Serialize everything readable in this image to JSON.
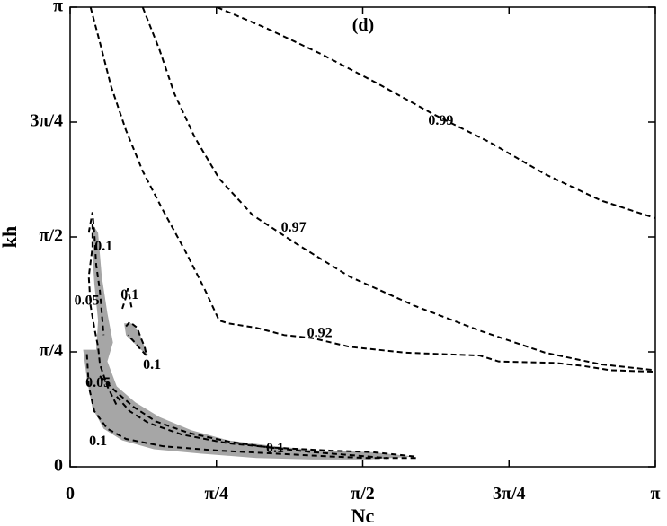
{
  "chart_data": {
    "type": "contour",
    "panel_label": "(d)",
    "xlabel": "Nc",
    "ylabel": "kh",
    "xlim": [
      0,
      3.14159
    ],
    "ylim": [
      0,
      3.14159
    ],
    "x_ticks": [
      {
        "value": 0,
        "label": "0"
      },
      {
        "value": 0.7854,
        "label": "π/4"
      },
      {
        "value": 1.5708,
        "label": "π/2"
      },
      {
        "value": 2.3562,
        "label": "3π/4"
      },
      {
        "value": 3.14159,
        "label": "π"
      }
    ],
    "y_ticks": [
      {
        "value": 0,
        "label": "0"
      },
      {
        "value": 0.7854,
        "label": "π/4"
      },
      {
        "value": 1.5708,
        "label": "π/2"
      },
      {
        "value": 2.3562,
        "label": "3π/4"
      },
      {
        "value": 3.14159,
        "label": "π"
      }
    ],
    "contours": [
      {
        "level": "0.99",
        "label_at": [
          1.99,
          2.36
        ],
        "points": [
          [
            0.79,
            3.14
          ],
          [
            1.05,
            3.0
          ],
          [
            1.35,
            2.82
          ],
          [
            1.65,
            2.62
          ],
          [
            1.95,
            2.41
          ],
          [
            2.25,
            2.22
          ],
          [
            2.55,
            2.0
          ],
          [
            2.85,
            1.82
          ],
          [
            3.14,
            1.7
          ]
        ]
      },
      {
        "level": "0.97",
        "label_at": [
          1.2,
          1.63
        ],
        "points": [
          [
            0.39,
            3.14
          ],
          [
            0.48,
            2.85
          ],
          [
            0.56,
            2.55
          ],
          [
            0.67,
            2.25
          ],
          [
            0.8,
            1.97
          ],
          [
            0.98,
            1.72
          ],
          [
            1.22,
            1.52
          ],
          [
            1.5,
            1.3
          ],
          [
            1.85,
            1.1
          ],
          [
            2.2,
            0.93
          ],
          [
            2.55,
            0.78
          ],
          [
            2.85,
            0.7
          ],
          [
            3.14,
            0.66
          ]
        ]
      },
      {
        "level": "0.92",
        "label_at": [
          1.34,
          0.91
        ],
        "points": [
          [
            0.11,
            3.14
          ],
          [
            0.16,
            2.9
          ],
          [
            0.22,
            2.6
          ],
          [
            0.3,
            2.3
          ],
          [
            0.39,
            2.02
          ],
          [
            0.5,
            1.75
          ],
          [
            0.62,
            1.47
          ],
          [
            0.72,
            1.22
          ],
          [
            0.8,
            1.0
          ],
          [
            0.85,
            0.98
          ],
          [
            1.0,
            0.95
          ],
          [
            1.15,
            0.9
          ],
          [
            1.3,
            0.88
          ],
          [
            1.5,
            0.82
          ],
          [
            1.8,
            0.78
          ],
          [
            2.0,
            0.77
          ],
          [
            2.2,
            0.76
          ],
          [
            2.3,
            0.72
          ],
          [
            2.6,
            0.71
          ],
          [
            2.75,
            0.69
          ],
          [
            2.9,
            0.66
          ],
          [
            3.14,
            0.65
          ]
        ]
      },
      {
        "level": "0.1",
        "label_at": [
          0.18,
          1.5
        ],
        "points": [
          [
            0.1,
            1.6
          ],
          [
            0.12,
            1.74
          ],
          [
            0.13,
            1.6
          ],
          [
            0.14,
            1.38
          ],
          [
            0.16,
            1.2
          ],
          [
            0.17,
            1.05
          ],
          [
            0.18,
            0.9
          ]
        ]
      },
      {
        "level": "0.1",
        "label_at": [
          0.32,
          1.17
        ],
        "points": [
          [
            0.28,
            1.08
          ],
          [
            0.3,
            1.16
          ],
          [
            0.31,
            1.22
          ],
          [
            0.32,
            1.15
          ],
          [
            0.33,
            1.09
          ]
        ]
      },
      {
        "level": "0.1",
        "label_at": [
          0.44,
          0.69
        ],
        "points": [
          [
            0.3,
            0.96
          ],
          [
            0.32,
            0.99
          ],
          [
            0.36,
            0.95
          ],
          [
            0.38,
            0.88
          ],
          [
            0.4,
            0.82
          ],
          [
            0.41,
            0.76
          ],
          [
            0.38,
            0.8
          ],
          [
            0.34,
            0.86
          ],
          [
            0.31,
            0.9
          ]
        ]
      },
      {
        "level": "0.05",
        "label_at": [
          0.09,
          1.13
        ],
        "points": [
          [
            0.12,
            1.66
          ],
          [
            0.12,
            1.5
          ],
          [
            0.1,
            1.3
          ],
          [
            0.11,
            1.1
          ],
          [
            0.13,
            0.95
          ],
          [
            0.15,
            0.82
          ],
          [
            0.16,
            0.7
          ],
          [
            0.2,
            0.55
          ],
          [
            0.25,
            0.42
          ]
        ]
      },
      {
        "level": "0.05",
        "label_at": [
          0.15,
          0.57
        ],
        "points": [
          [
            0.16,
            0.62
          ],
          [
            0.24,
            0.52
          ],
          [
            0.34,
            0.41
          ],
          [
            0.46,
            0.31
          ],
          [
            0.64,
            0.23
          ],
          [
            0.86,
            0.17
          ],
          [
            1.08,
            0.13
          ],
          [
            1.3,
            0.1
          ],
          [
            1.5,
            0.08
          ],
          [
            1.7,
            0.06
          ]
        ]
      },
      {
        "level": "0.1",
        "label_at": [
          0.15,
          0.17
        ],
        "points": [
          [
            0.09,
            0.77
          ],
          [
            0.1,
            0.55
          ],
          [
            0.13,
            0.38
          ],
          [
            0.2,
            0.26
          ],
          [
            0.3,
            0.19
          ],
          [
            0.5,
            0.14
          ],
          [
            0.8,
            0.11
          ],
          [
            1.1,
            0.09
          ],
          [
            1.4,
            0.07
          ],
          [
            1.6,
            0.06
          ],
          [
            1.86,
            0.06
          ]
        ]
      },
      {
        "level": "0.1",
        "label_at": [
          1.1,
          0.12
        ],
        "points": [
          [
            0.25,
            0.48
          ],
          [
            0.32,
            0.38
          ],
          [
            0.42,
            0.3
          ],
          [
            0.6,
            0.22
          ],
          [
            0.85,
            0.16
          ],
          [
            1.1,
            0.13
          ],
          [
            1.4,
            0.11
          ],
          [
            1.62,
            0.1
          ],
          [
            1.85,
            0.07
          ]
        ]
      }
    ],
    "shaded_regions": [
      {
        "points": [
          [
            0.07,
            0.8
          ],
          [
            0.14,
            0.8
          ],
          [
            0.15,
            1.0
          ],
          [
            0.13,
            1.25
          ],
          [
            0.12,
            1.45
          ],
          [
            0.12,
            1.66
          ],
          [
            0.15,
            1.6
          ],
          [
            0.17,
            1.3
          ],
          [
            0.2,
            1.05
          ],
          [
            0.23,
            0.85
          ],
          [
            0.2,
            0.72
          ],
          [
            0.25,
            0.55
          ],
          [
            0.35,
            0.44
          ],
          [
            0.48,
            0.34
          ],
          [
            0.65,
            0.25
          ],
          [
            0.85,
            0.18
          ],
          [
            1.1,
            0.14
          ],
          [
            1.35,
            0.11
          ],
          [
            1.62,
            0.1
          ],
          [
            1.85,
            0.07
          ],
          [
            1.6,
            0.05
          ],
          [
            1.3,
            0.05
          ],
          [
            1.0,
            0.06
          ],
          [
            0.7,
            0.09
          ],
          [
            0.45,
            0.12
          ],
          [
            0.28,
            0.18
          ],
          [
            0.18,
            0.26
          ],
          [
            0.12,
            0.4
          ],
          [
            0.09,
            0.6
          ]
        ]
      },
      {
        "points": [
          [
            0.29,
            0.98
          ],
          [
            0.33,
            0.98
          ],
          [
            0.37,
            0.92
          ],
          [
            0.4,
            0.82
          ],
          [
            0.42,
            0.76
          ],
          [
            0.38,
            0.8
          ],
          [
            0.34,
            0.85
          ],
          [
            0.3,
            0.9
          ]
        ]
      }
    ]
  }
}
